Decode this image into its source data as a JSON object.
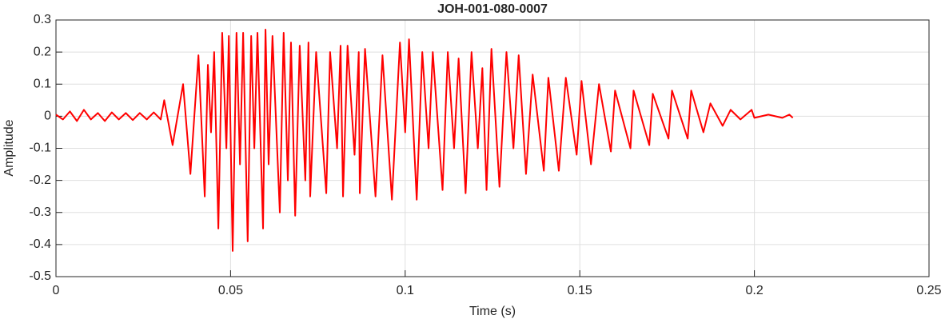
{
  "chart_data": {
    "type": "line",
    "title": "JOH-001-080-0007",
    "xlabel": "Time (s)",
    "ylabel": "Amplitude",
    "xlim": [
      0,
      0.25
    ],
    "ylim": [
      -0.5,
      0.3
    ],
    "xticks": [
      0,
      0.05,
      0.1,
      0.15,
      0.2,
      0.25
    ],
    "yticks": [
      -0.5,
      -0.4,
      -0.3,
      -0.2,
      -0.1,
      0,
      0.1,
      0.2,
      0.3
    ],
    "grid": true,
    "series": [
      {
        "color": "#ff0000",
        "x": [
          0,
          0.002,
          0.004,
          0.006,
          0.008,
          0.01,
          0.012,
          0.014,
          0.016,
          0.018,
          0.02,
          0.022,
          0.024,
          0.026,
          0.028,
          0.03,
          0.031,
          0.0334,
          0.0364,
          0.0385,
          0.0408,
          0.0426,
          0.0435,
          0.0444,
          0.0453,
          0.0465,
          0.0476,
          0.0488,
          0.0495,
          0.0506,
          0.0517,
          0.0527,
          0.0536,
          0.0549,
          0.0559,
          0.0568,
          0.0577,
          0.0593,
          0.06,
          0.0609,
          0.062,
          0.0641,
          0.0652,
          0.0664,
          0.0673,
          0.0685,
          0.0698,
          0.0714,
          0.0723,
          0.0728,
          0.0745,
          0.0774,
          0.0785,
          0.0805,
          0.0815,
          0.0822,
          0.0835,
          0.0855,
          0.0867,
          0.087,
          0.0885,
          0.0915,
          0.0935,
          0.0962,
          0.0985,
          0.1,
          0.1011,
          0.1033,
          0.1049,
          0.1067,
          0.1079,
          0.1107,
          0.1122,
          0.114,
          0.1153,
          0.1173,
          0.119,
          0.1208,
          0.1221,
          0.1233,
          0.1247,
          0.127,
          0.129,
          0.131,
          0.1325,
          0.1346,
          0.1365,
          0.1397,
          0.141,
          0.144,
          0.146,
          0.1491,
          0.1505,
          0.1532,
          0.1555,
          0.1589,
          0.1601,
          0.1645,
          0.1654,
          0.1699,
          0.1709,
          0.1754,
          0.1764,
          0.1809,
          0.1819,
          0.1854,
          0.1874,
          0.1909,
          0.1932,
          0.196,
          0.1992,
          0.2,
          0.204,
          0.208,
          0.21,
          0.211
        ],
        "values": [
          0.005,
          -0.01,
          0.015,
          -0.015,
          0.02,
          -0.01,
          0.01,
          -0.015,
          0.012,
          -0.01,
          0.01,
          -0.012,
          0.01,
          -0.01,
          0.012,
          -0.01,
          0.05,
          -0.09,
          0.1,
          -0.18,
          0.19,
          -0.25,
          0.16,
          -0.05,
          0.2,
          -0.35,
          0.26,
          -0.1,
          0.25,
          -0.42,
          0.26,
          -0.15,
          0.26,
          -0.39,
          0.25,
          -0.1,
          0.26,
          -0.35,
          0.27,
          -0.15,
          0.25,
          -0.3,
          0.26,
          -0.2,
          0.23,
          -0.31,
          0.22,
          -0.2,
          0.23,
          -0.25,
          0.2,
          -0.24,
          0.2,
          -0.1,
          0.22,
          -0.25,
          0.22,
          -0.12,
          0.2,
          -0.24,
          0.21,
          -0.25,
          0.19,
          -0.26,
          0.23,
          -0.05,
          0.24,
          -0.26,
          0.2,
          -0.1,
          0.2,
          -0.23,
          0.2,
          -0.1,
          0.18,
          -0.24,
          0.2,
          -0.1,
          0.15,
          -0.23,
          0.21,
          -0.22,
          0.2,
          -0.1,
          0.19,
          -0.18,
          0.13,
          -0.17,
          0.12,
          -0.17,
          0.12,
          -0.12,
          0.11,
          -0.15,
          0.1,
          -0.11,
          0.08,
          -0.1,
          0.08,
          -0.09,
          0.07,
          -0.07,
          0.08,
          -0.07,
          0.08,
          -0.05,
          0.04,
          -0.03,
          0.02,
          -0.01,
          0.02,
          -0.005,
          0.005,
          -0.005,
          0.005,
          -0.005
        ]
      }
    ]
  }
}
